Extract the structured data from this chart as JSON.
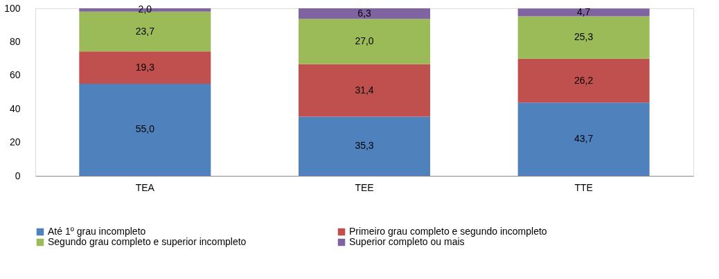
{
  "chart_data": {
    "type": "bar",
    "stacked": true,
    "categories": [
      "TEA",
      "TEE",
      "TTE"
    ],
    "series": [
      {
        "name": "Até 1º grau incompleto",
        "color": "#4f81bd",
        "values": [
          55.0,
          35.3,
          43.7
        ],
        "value_labels": [
          "55,0",
          "35,3",
          "43,7"
        ]
      },
      {
        "name": "Primeiro grau completo e segundo incompleto",
        "color": "#c0504d",
        "values": [
          19.3,
          31.4,
          26.2
        ],
        "value_labels": [
          "19,3",
          "31,4",
          "26,2"
        ]
      },
      {
        "name": "Segundo grau completo e superior incompleto",
        "color": "#9bbb59",
        "values": [
          23.7,
          27.0,
          25.3
        ],
        "value_labels": [
          "23,7",
          "27,0",
          "25,3"
        ]
      },
      {
        "name": "Superior completo ou mais",
        "color": "#8064a2",
        "values": [
          2.0,
          6.3,
          4.7
        ],
        "value_labels": [
          "2,0",
          "6,3",
          "4,7"
        ]
      }
    ],
    "ylim": [
      0,
      100
    ],
    "yticks": [
      0,
      20,
      40,
      60,
      80,
      100
    ],
    "grid": false,
    "legend": "bottom"
  }
}
